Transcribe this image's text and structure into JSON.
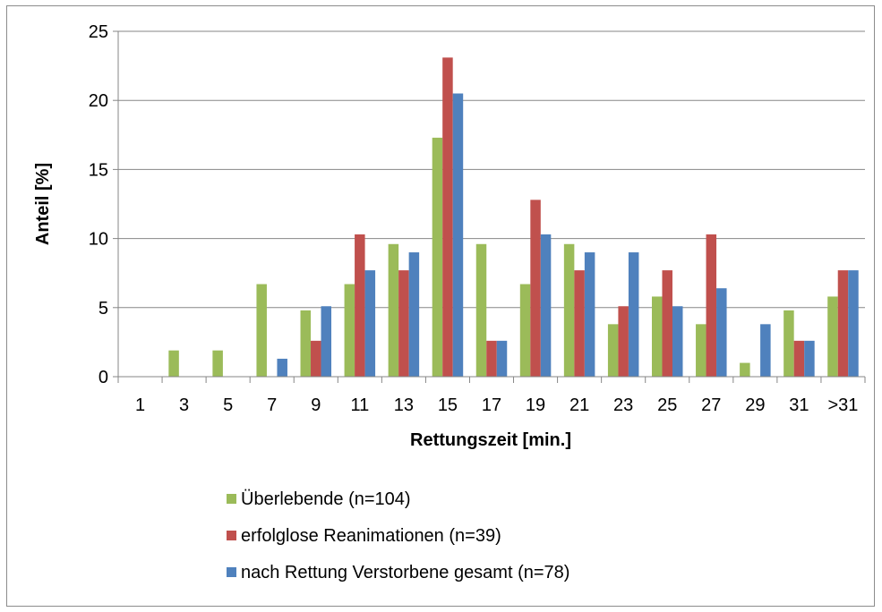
{
  "chart_data": {
    "type": "bar",
    "title": "",
    "xlabel": "Rettungszeit [min.]",
    "ylabel": "Anteil [%]",
    "ylim": [
      0,
      25
    ],
    "yticks": [
      "0",
      "5",
      "10",
      "15",
      "20",
      "25"
    ],
    "grid": true,
    "legend_position": "bottom",
    "categories": [
      "1",
      "3",
      "5",
      "7",
      "9",
      "11",
      "13",
      "15",
      "17",
      "19",
      "21",
      "23",
      "25",
      "27",
      "29",
      "31",
      ">31"
    ],
    "series": [
      {
        "name": "Überlebende  (n=104)",
        "color": "#9BBB59",
        "values": [
          0,
          1.9,
          1.9,
          6.7,
          4.8,
          6.7,
          9.6,
          17.3,
          9.6,
          6.7,
          9.6,
          3.8,
          5.8,
          3.8,
          1.0,
          4.8,
          5.8
        ]
      },
      {
        "name": "erfolglose Reanimationen  (n=39)",
        "color": "#C0504D",
        "values": [
          0,
          0,
          0,
          0,
          2.6,
          10.3,
          7.7,
          23.1,
          2.6,
          12.8,
          7.7,
          5.1,
          7.7,
          10.3,
          0,
          2.6,
          7.7
        ]
      },
      {
        "name": "nach Rettung Verstorbene gesamt (n=78)",
        "color": "#4F81BD",
        "values": [
          0,
          0,
          0,
          1.3,
          5.1,
          7.7,
          9.0,
          20.5,
          2.6,
          10.3,
          9.0,
          9.0,
          5.1,
          6.4,
          3.8,
          2.6,
          7.7
        ]
      }
    ]
  }
}
